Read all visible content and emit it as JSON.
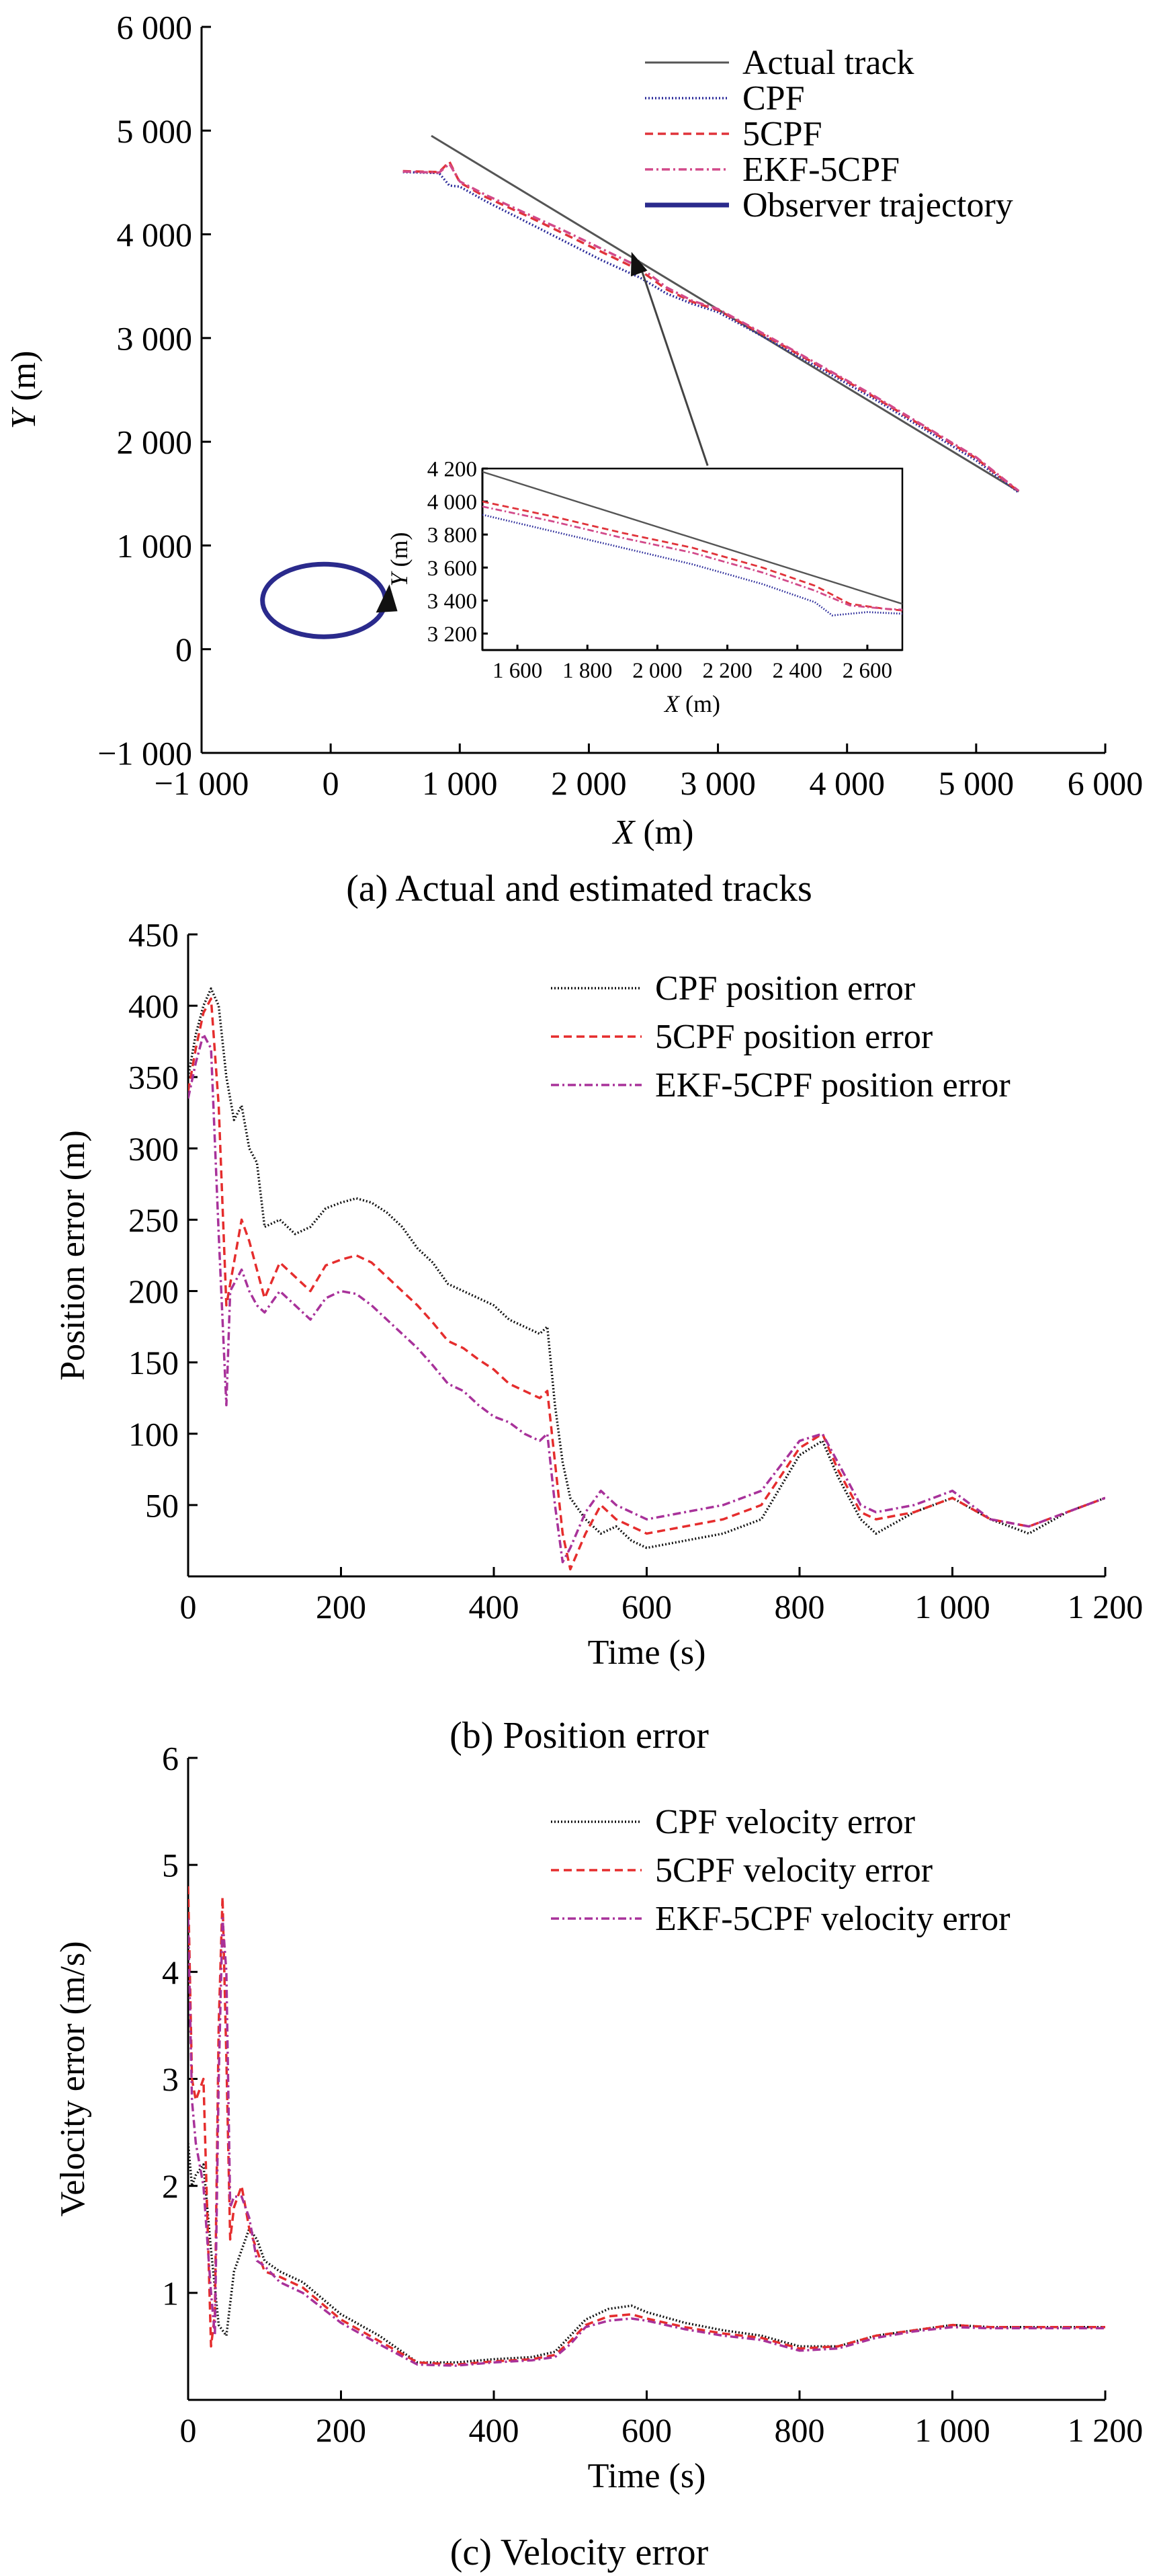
{
  "chart_data": [
    {
      "id": "a",
      "type": "line",
      "caption": "(a) Actual and estimated tracks",
      "xlabel_var": "X",
      "xlabel_unit": " (m)",
      "ylabel_var": "Y",
      "ylabel_unit": " (m)",
      "xlim": [
        -1000,
        6000
      ],
      "ylim": [
        -1000,
        6000
      ],
      "xticks": [
        -1000,
        0,
        1000,
        2000,
        3000,
        4000,
        5000,
        6000
      ],
      "xtick_labels": [
        "−1 000",
        "0",
        "1 000",
        "2 000",
        "3 000",
        "4 000",
        "5 000",
        "6 000"
      ],
      "yticks": [
        -1000,
        0,
        1000,
        2000,
        3000,
        4000,
        5000,
        6000
      ],
      "ytick_labels": [
        "−1 000",
        "0",
        "1 000",
        "2 000",
        "3 000",
        "4 000",
        "5 000",
        "6 000"
      ],
      "legend_position": "top-right",
      "series": [
        {
          "name": "Actual track",
          "color": "#555555",
          "style": "solid",
          "x": [
            780,
            5330
          ],
          "y": [
            4950,
            1520
          ]
        },
        {
          "name": "CPF",
          "color": "#2b2b9a",
          "style": "dotted",
          "x": [
            560,
            840,
            920,
            1000,
            1200,
            1500,
            1800,
            2100,
            2400,
            2600,
            2800,
            3000,
            3400,
            3800,
            4200,
            4600,
            5000,
            5330
          ],
          "y": [
            4600,
            4590,
            4470,
            4460,
            4320,
            4130,
            3940,
            3750,
            3580,
            3430,
            3330,
            3250,
            2980,
            2700,
            2420,
            2120,
            1820,
            1510
          ]
        },
        {
          "name": "5CPF",
          "color": "#e0333a",
          "style": "dashed",
          "x": [
            560,
            840,
            920,
            1000,
            1200,
            1500,
            1800,
            2100,
            2400,
            2600,
            2800,
            3000,
            3400,
            3800,
            4200,
            4600,
            5000,
            5330
          ],
          "y": [
            4610,
            4600,
            4700,
            4500,
            4360,
            4190,
            4010,
            3830,
            3650,
            3470,
            3350,
            3270,
            3000,
            2720,
            2440,
            2140,
            1840,
            1520
          ]
        },
        {
          "name": "EKF-5CPF",
          "color": "#d24a8a",
          "style": "dashdot",
          "x": [
            560,
            840,
            920,
            1000,
            1200,
            1500,
            1800,
            2100,
            2400,
            2600,
            2800,
            3000,
            3400,
            3800,
            4200,
            4600,
            5000,
            5330
          ],
          "y": [
            4605,
            4595,
            4680,
            4510,
            4380,
            4210,
            4040,
            3860,
            3680,
            3490,
            3360,
            3280,
            3010,
            2730,
            2450,
            2150,
            1850,
            1525
          ]
        },
        {
          "name": "Observer trajectory",
          "color": "#2a2a8c",
          "style": "solid",
          "shape": "circle",
          "cx": 0,
          "cy": 470,
          "rx": 680,
          "ry": 500
        }
      ],
      "annotation": {
        "from": [
          2920,
          1770
        ],
        "to": [
          2330,
          3830
        ]
      },
      "inset": {
        "xlabel_var": "X",
        "xlabel_unit": " (m)",
        "ylabel_var": "Y",
        "ylabel_unit": " (m)",
        "xlim": [
          1500,
          2700
        ],
        "ylim": [
          3100,
          4200
        ],
        "xticks": [
          1600,
          1800,
          2000,
          2200,
          2400,
          2600
        ],
        "xtick_labels": [
          "1 600",
          "1 800",
          "2 000",
          "2 200",
          "2 400",
          "2 600"
        ],
        "yticks": [
          3200,
          3400,
          3600,
          3800,
          4000,
          4200
        ],
        "ytick_labels": [
          "3 200",
          "3 400",
          "3 600",
          "3 800",
          "4 000",
          "4 200"
        ],
        "series": [
          {
            "name": "Actual track",
            "color": "#555555",
            "style": "solid",
            "x": [
              1500,
              2700
            ],
            "y": [
              4180,
              3380
            ]
          },
          {
            "name": "CPF",
            "color": "#2b2b9a",
            "style": "dotted",
            "x": [
              1500,
              1700,
              1900,
              2100,
              2300,
              2450,
              2500,
              2600,
              2700
            ],
            "y": [
              3920,
              3820,
              3720,
              3620,
              3500,
              3390,
              3310,
              3330,
              3320
            ]
          },
          {
            "name": "5CPF",
            "color": "#e0333a",
            "style": "dashed",
            "x": [
              1500,
              1700,
              1900,
              2100,
              2300,
              2450,
              2550,
              2650,
              2700
            ],
            "y": [
              4000,
              3910,
              3810,
              3720,
              3600,
              3490,
              3380,
              3350,
              3340
            ]
          },
          {
            "name": "EKF-5CPF",
            "color": "#d24a8a",
            "style": "dashdot",
            "x": [
              1500,
              1700,
              1900,
              2100,
              2300,
              2450,
              2550,
              2650,
              2700
            ],
            "y": [
              3970,
              3880,
              3780,
              3690,
              3570,
              3460,
              3370,
              3350,
              3345
            ]
          }
        ]
      }
    },
    {
      "id": "b",
      "type": "line",
      "caption": "(b) Position error",
      "xlabel": "Time (s)",
      "ylabel": "Position error (m)",
      "xlim": [
        0,
        1200
      ],
      "ylim": [
        0,
        450
      ],
      "xticks": [
        0,
        200,
        400,
        600,
        800,
        1000,
        1200
      ],
      "xtick_labels": [
        "0",
        "200",
        "400",
        "600",
        "800",
        "1 000",
        "1 200"
      ],
      "yticks": [
        50,
        100,
        150,
        200,
        250,
        300,
        350,
        400,
        450
      ],
      "ytick_labels": [
        "50",
        "100",
        "150",
        "200",
        "250",
        "300",
        "350",
        "400",
        "450"
      ],
      "legend_position": "top-right",
      "series": [
        {
          "name": "CPF position error",
          "color": "#111111",
          "style": "dotted",
          "x": [
            0,
            10,
            20,
            30,
            40,
            50,
            60,
            70,
            80,
            90,
            100,
            120,
            140,
            160,
            180,
            200,
            220,
            240,
            260,
            280,
            300,
            320,
            340,
            360,
            380,
            400,
            420,
            440,
            460,
            470,
            480,
            490,
            500,
            520,
            540,
            560,
            580,
            600,
            650,
            700,
            750,
            800,
            830,
            850,
            880,
            900,
            950,
            1000,
            1050,
            1100,
            1150,
            1200
          ],
          "y": [
            350,
            380,
            400,
            412,
            400,
            350,
            320,
            330,
            300,
            290,
            245,
            250,
            240,
            245,
            258,
            262,
            265,
            262,
            255,
            245,
            230,
            220,
            205,
            200,
            195,
            190,
            180,
            175,
            170,
            175,
            120,
            80,
            55,
            40,
            30,
            35,
            25,
            20,
            25,
            30,
            40,
            85,
            95,
            70,
            40,
            30,
            45,
            55,
            40,
            30,
            45,
            55
          ]
        },
        {
          "name": "5CPF position error",
          "color": "#e52d2d",
          "style": "dashed",
          "x": [
            0,
            10,
            20,
            30,
            40,
            50,
            60,
            70,
            80,
            90,
            100,
            120,
            140,
            160,
            180,
            200,
            220,
            240,
            260,
            280,
            300,
            320,
            340,
            360,
            380,
            400,
            420,
            440,
            460,
            470,
            480,
            490,
            500,
            520,
            540,
            560,
            580,
            600,
            650,
            700,
            750,
            800,
            830,
            850,
            880,
            900,
            950,
            1000,
            1050,
            1100,
            1150,
            1200
          ],
          "y": [
            340,
            370,
            395,
            405,
            330,
            190,
            220,
            250,
            235,
            215,
            195,
            220,
            210,
            200,
            218,
            222,
            225,
            220,
            210,
            200,
            190,
            178,
            165,
            160,
            152,
            145,
            135,
            130,
            125,
            130,
            80,
            30,
            5,
            30,
            50,
            40,
            35,
            30,
            35,
            40,
            50,
            90,
            100,
            75,
            45,
            40,
            45,
            55,
            40,
            35,
            45,
            55
          ]
        },
        {
          "name": "EKF-5CPF position error",
          "color": "#a8329a",
          "style": "dashdot",
          "x": [
            0,
            10,
            20,
            30,
            40,
            50,
            55,
            60,
            70,
            80,
            90,
            100,
            120,
            140,
            160,
            180,
            200,
            220,
            240,
            260,
            280,
            300,
            320,
            340,
            360,
            380,
            400,
            420,
            440,
            460,
            470,
            480,
            490,
            500,
            520,
            540,
            560,
            580,
            600,
            650,
            700,
            750,
            800,
            830,
            850,
            880,
            900,
            950,
            1000,
            1050,
            1100,
            1150,
            1200
          ],
          "y": [
            335,
            360,
            380,
            370,
            240,
            120,
            200,
            205,
            215,
            200,
            190,
            185,
            200,
            190,
            180,
            195,
            200,
            198,
            190,
            180,
            170,
            160,
            148,
            135,
            130,
            120,
            112,
            108,
            100,
            95,
            100,
            50,
            10,
            20,
            45,
            60,
            50,
            45,
            40,
            45,
            50,
            60,
            95,
            100,
            80,
            50,
            45,
            50,
            60,
            40,
            35,
            45,
            55
          ]
        }
      ]
    },
    {
      "id": "c",
      "type": "line",
      "caption": "(c) Velocity error",
      "xlabel": "Time (s)",
      "ylabel": "Velocity error (m/s)",
      "xlim": [
        0,
        1200
      ],
      "ylim": [
        0,
        6
      ],
      "xticks": [
        0,
        200,
        400,
        600,
        800,
        1000,
        1200
      ],
      "xtick_labels": [
        "0",
        "200",
        "400",
        "600",
        "800",
        "1 000",
        "1 200"
      ],
      "yticks": [
        1,
        2,
        3,
        4,
        5,
        6
      ],
      "ytick_labels": [
        "1",
        "2",
        "3",
        "4",
        "5",
        "6"
      ],
      "legend_position": "top-right",
      "series": [
        {
          "name": "CPF velocity error",
          "color": "#111111",
          "style": "dotted",
          "x": [
            0,
            5,
            10,
            20,
            30,
            40,
            50,
            60,
            70,
            80,
            90,
            100,
            120,
            150,
            200,
            250,
            300,
            350,
            400,
            450,
            480,
            500,
            520,
            550,
            580,
            600,
            650,
            700,
            750,
            800,
            850,
            900,
            950,
            1000,
            1050,
            1100,
            1150,
            1200
          ],
          "y": [
            2.4,
            2.0,
            2.1,
            2.2,
            1.4,
            0.7,
            0.6,
            1.2,
            1.4,
            1.6,
            1.5,
            1.3,
            1.2,
            1.1,
            0.8,
            0.6,
            0.35,
            0.35,
            0.38,
            0.4,
            0.45,
            0.6,
            0.75,
            0.85,
            0.88,
            0.82,
            0.72,
            0.65,
            0.6,
            0.5,
            0.5,
            0.6,
            0.65,
            0.7,
            0.68,
            0.68,
            0.68,
            0.68
          ]
        },
        {
          "name": "5CPF velocity error",
          "color": "#e52d2d",
          "style": "dashed",
          "x": [
            0,
            5,
            10,
            20,
            30,
            35,
            40,
            45,
            50,
            55,
            60,
            70,
            80,
            90,
            100,
            120,
            150,
            200,
            250,
            300,
            350,
            400,
            450,
            480,
            500,
            520,
            550,
            580,
            600,
            650,
            700,
            750,
            800,
            850,
            900,
            950,
            1000,
            1050,
            1100,
            1150,
            1200
          ],
          "y": [
            4.8,
            3.0,
            2.8,
            3.0,
            0.5,
            0.8,
            3.5,
            4.7,
            3.2,
            1.5,
            1.8,
            2.0,
            1.6,
            1.4,
            1.2,
            1.15,
            1.05,
            0.75,
            0.55,
            0.35,
            0.33,
            0.36,
            0.38,
            0.42,
            0.55,
            0.7,
            0.78,
            0.8,
            0.76,
            0.68,
            0.62,
            0.58,
            0.48,
            0.5,
            0.6,
            0.65,
            0.7,
            0.68,
            0.68,
            0.68,
            0.68
          ]
        },
        {
          "name": "EKF-5CPF velocity error",
          "color": "#a8329a",
          "style": "dashdot",
          "x": [
            0,
            5,
            10,
            20,
            30,
            35,
            40,
            45,
            50,
            55,
            60,
            70,
            80,
            90,
            100,
            120,
            150,
            200,
            250,
            300,
            350,
            400,
            450,
            480,
            500,
            520,
            550,
            580,
            600,
            650,
            700,
            750,
            800,
            850,
            900,
            950,
            1000,
            1050,
            1100,
            1150,
            1200
          ],
          "y": [
            4.5,
            2.8,
            2.4,
            2.0,
            1.0,
            0.6,
            3.0,
            4.5,
            4.0,
            1.8,
            1.9,
            1.9,
            1.7,
            1.3,
            1.25,
            1.1,
            1.0,
            0.72,
            0.52,
            0.33,
            0.32,
            0.35,
            0.37,
            0.4,
            0.52,
            0.68,
            0.74,
            0.76,
            0.74,
            0.66,
            0.6,
            0.56,
            0.46,
            0.48,
            0.58,
            0.64,
            0.68,
            0.67,
            0.67,
            0.67,
            0.67
          ]
        }
      ]
    }
  ]
}
